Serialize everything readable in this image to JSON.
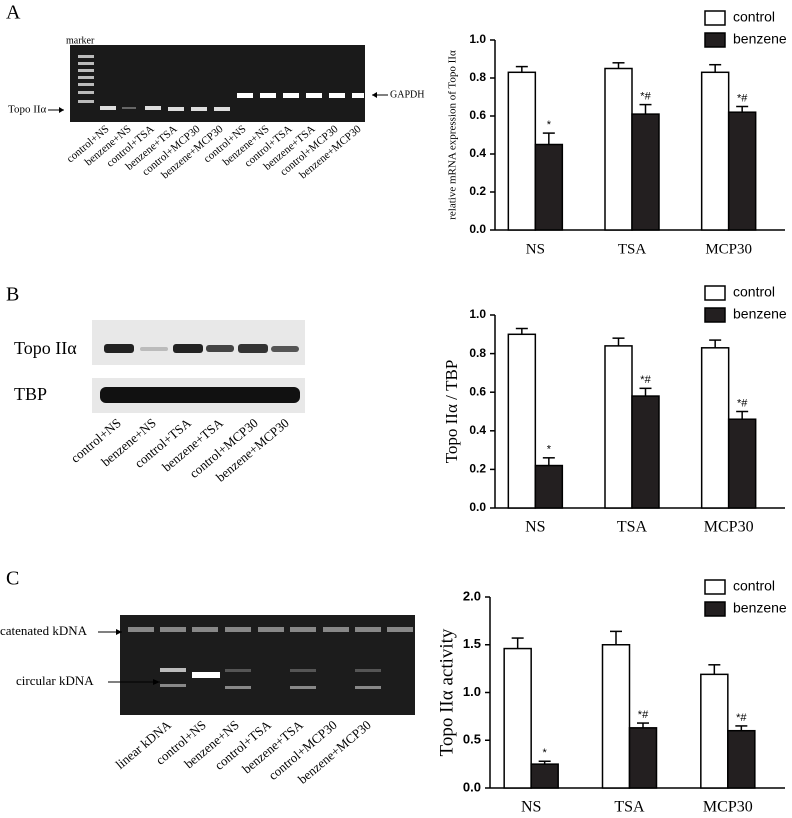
{
  "panels": [
    {
      "label": "A",
      "gel": {
        "marker": "marker",
        "target": "Topo IIα",
        "reference": "GAPDH",
        "lanes": [
          "control+NS",
          "benzene+NS",
          "control+TSA",
          "benzene+TSA",
          "control+MCP30",
          "benzene+MCP30",
          "control+NS",
          "benzene+NS",
          "control+TSA",
          "benzene+TSA",
          "control+MCP30",
          "benzene+MCP30"
        ]
      }
    },
    {
      "label": "B",
      "gel": {
        "target": "Topo IIα",
        "reference": "TBP",
        "lanes": [
          "control+NS",
          "benzene+NS",
          "control+TSA",
          "benzene+TSA",
          "control+MCP30",
          "benzene+MCP30"
        ]
      }
    },
    {
      "label": "C",
      "gel": {
        "target": "catenated kDNA",
        "reference": "circular kDNA",
        "lanes": [
          "linear kDNA",
          "control+NS",
          "benzene+NS",
          "control+TSA",
          "benzene+TSA",
          "control+MCP30",
          "benzene+MCP30"
        ]
      }
    }
  ],
  "chart_data": [
    {
      "type": "bar",
      "ylabel": "relative mRNA expression of Topo IIα",
      "categories": [
        "NS",
        "TSA",
        "MCP30"
      ],
      "series": [
        {
          "name": "control",
          "color": "#ffffff",
          "values": [
            0.83,
            0.85,
            0.83
          ],
          "errors": [
            0.03,
            0.03,
            0.04
          ]
        },
        {
          "name": "benzene",
          "color": "#231f20",
          "values": [
            0.45,
            0.61,
            0.62
          ],
          "errors": [
            0.06,
            0.05,
            0.03
          ],
          "annotations": [
            "*",
            "*#",
            "*#"
          ]
        }
      ],
      "ylim": [
        0,
        1
      ],
      "yticks": [
        {
          "value": 0,
          "label": "0.0"
        },
        0.2,
        0.4,
        0.6,
        0.8,
        {
          "value": 1,
          "label": "1.0"
        }
      ],
      "legend": "top-right"
    },
    {
      "type": "bar",
      "ylabel": "Topo IIα / TBP",
      "categories": [
        "NS",
        "TSA",
        "MCP30"
      ],
      "series": [
        {
          "name": "control",
          "color": "#ffffff",
          "values": [
            0.9,
            0.84,
            0.83
          ],
          "errors": [
            0.03,
            0.04,
            0.04
          ]
        },
        {
          "name": "benzene",
          "color": "#231f20",
          "values": [
            0.22,
            0.58,
            0.46
          ],
          "errors": [
            0.04,
            0.04,
            0.04
          ],
          "annotations": [
            "*",
            "*#",
            "*#"
          ]
        }
      ],
      "ylim": [
        0,
        1
      ],
      "yticks": [
        {
          "value": 0,
          "label": "0.0"
        },
        0.2,
        0.4,
        0.6,
        0.8,
        {
          "value": 1,
          "label": "1.0"
        }
      ],
      "legend": "top-right"
    },
    {
      "type": "bar",
      "ylabel": "Topo IIα activity",
      "categories": [
        "NS",
        "TSA",
        "MCP30"
      ],
      "series": [
        {
          "name": "control",
          "color": "#ffffff",
          "values": [
            1.46,
            1.5,
            1.19
          ],
          "errors": [
            0.11,
            0.14,
            0.1
          ]
        },
        {
          "name": "benzene",
          "color": "#231f20",
          "values": [
            0.25,
            0.63,
            0.6
          ],
          "errors": [
            0.03,
            0.05,
            0.05
          ],
          "annotations": [
            "*",
            "*#",
            "*#"
          ]
        }
      ],
      "ylim": [
        0,
        2
      ],
      "yticks": [
        {
          "value": 0,
          "label": "0.0"
        },
        0.5,
        {
          "value": 1,
          "label": "1.0"
        },
        1.5,
        {
          "value": 2,
          "label": "2.0"
        }
      ],
      "legend": "top-right"
    }
  ]
}
